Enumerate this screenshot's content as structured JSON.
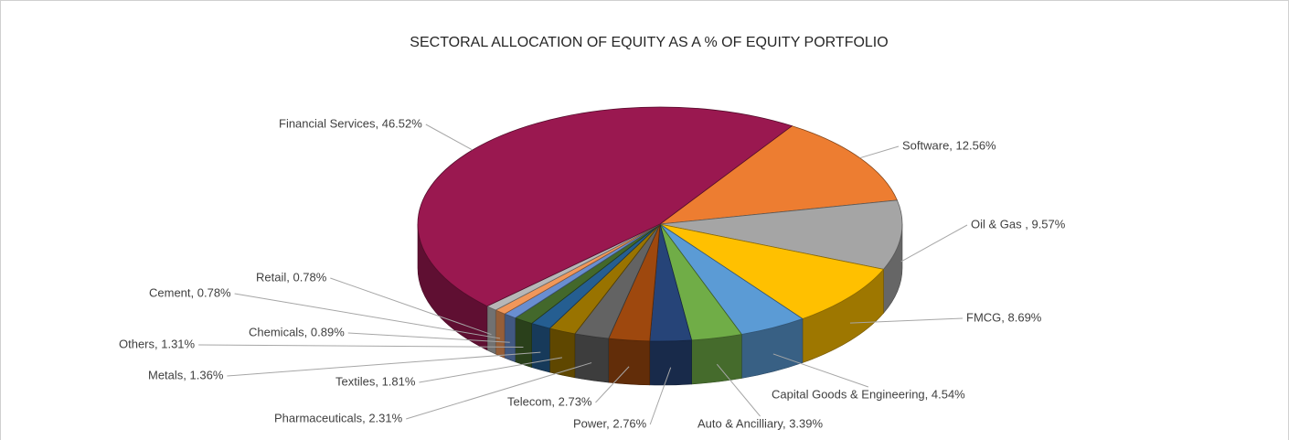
{
  "chart_data": {
    "type": "pie3d",
    "title": "SECTORAL ALLOCATION OF EQUITY AS A % OF EQUITY PORTFOLIO",
    "categories": [
      "Software",
      "Oil & Gas",
      "FMCG",
      "Capital Goods & Engineering",
      "Auto & Ancilliary",
      "Power",
      "Telecom",
      "Pharmaceuticals",
      "Textiles",
      "Metals",
      "Others",
      "Chemicals",
      "Cement",
      "Retail",
      "Financial Services"
    ],
    "values": [
      12.56,
      9.57,
      8.69,
      4.54,
      3.39,
      2.76,
      2.73,
      2.31,
      1.81,
      1.36,
      1.31,
      0.89,
      0.78,
      0.78,
      46.52
    ],
    "value_labels": [
      "Software, 12.56%",
      "Oil & Gas , 9.57%",
      "FMCG, 8.69%",
      "Capital Goods & Engineering, 4.54%",
      "Auto & Ancilliary, 3.39%",
      "Power, 2.76%",
      "Telecom, 2.73%",
      "Pharmaceuticals, 2.31%",
      "Textiles, 1.81%",
      "Metals, 1.36%",
      "Others, 1.31%",
      "Chemicals, 0.89%",
      "Cement, 0.78%",
      "Retail, 0.78%",
      "Financial Services, 46.52%"
    ],
    "colors": [
      "#ED7D31",
      "#A5A5A5",
      "#FFC000",
      "#5B9BD5",
      "#70AD47",
      "#264478",
      "#9E480E",
      "#636363",
      "#997300",
      "#255E91",
      "#43682B",
      "#698ED0",
      "#F1975A",
      "#B7B7B7",
      "#9A1850"
    ]
  }
}
